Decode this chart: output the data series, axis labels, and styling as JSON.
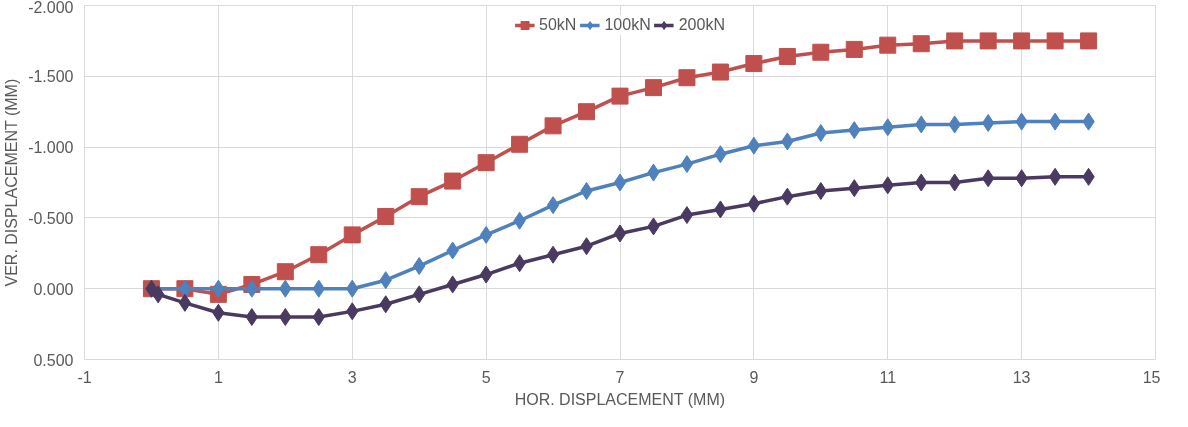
{
  "chart_data": {
    "type": "line",
    "xlabel": "HOR. DISPLACEMENT (MM)",
    "ylabel": "VER. DISPLACEMENT (MM)",
    "x": [
      0,
      0.5,
      1,
      1.5,
      2,
      2.5,
      3,
      3.5,
      4,
      4.5,
      5,
      5.5,
      6,
      6.5,
      7,
      7.5,
      8,
      8.5,
      9,
      9.5,
      10,
      10.5,
      11,
      11.5,
      12,
      12.5,
      13,
      13.5,
      14
    ],
    "series": [
      {
        "name": "50kN",
        "color": "#c0504d",
        "marker": "square",
        "values": [
          0.0,
          0.0,
          0.04,
          -0.03,
          -0.12,
          -0.24,
          -0.38,
          -0.51,
          -0.65,
          -0.76,
          -0.89,
          -1.02,
          -1.15,
          -1.25,
          -1.36,
          -1.42,
          -1.49,
          -1.53,
          -1.59,
          -1.64,
          -1.67,
          -1.69,
          -1.72,
          -1.73,
          -1.75,
          -1.75,
          -1.75,
          -1.75,
          -1.75
        ]
      },
      {
        "name": "100kN",
        "color": "#4f81bd",
        "marker": "diamond",
        "values": [
          0.0,
          0.0,
          0.0,
          0.0,
          0.0,
          0.0,
          0.0,
          -0.06,
          -0.16,
          -0.27,
          -0.38,
          -0.48,
          -0.59,
          -0.69,
          -0.75,
          -0.82,
          -0.88,
          -0.95,
          -1.01,
          -1.04,
          -1.1,
          -1.12,
          -1.14,
          -1.16,
          -1.16,
          -1.17,
          -1.18,
          -1.18,
          -1.18
        ]
      },
      {
        "name": "200kN",
        "color": "#4a3960",
        "marker": "diamond",
        "x": [
          0,
          0.1,
          0.5,
          1,
          1.5,
          2,
          2.5,
          3,
          3.5,
          4,
          4.5,
          5,
          5.5,
          6,
          6.5,
          7,
          7.5,
          8,
          8.5,
          9,
          9.5,
          10,
          10.5,
          11,
          11.5,
          12,
          12.5,
          13,
          13.5,
          14
        ],
        "values": [
          0.0,
          0.04,
          0.1,
          0.17,
          0.2,
          0.2,
          0.2,
          0.16,
          0.11,
          0.04,
          -0.03,
          -0.1,
          -0.18,
          -0.24,
          -0.3,
          -0.39,
          -0.44,
          -0.52,
          -0.56,
          -0.6,
          -0.65,
          -0.69,
          -0.71,
          -0.73,
          -0.75,
          -0.75,
          -0.78,
          -0.78,
          -0.79,
          -0.79
        ]
      }
    ],
    "xlim": [
      -1,
      15
    ],
    "xticks": [
      -1,
      1,
      3,
      5,
      7,
      9,
      11,
      13,
      15
    ],
    "ylim": [
      0.5,
      -2.0
    ],
    "yticks": [
      {
        "value": -2.0,
        "label": "-2.000"
      },
      {
        "value": -1.5,
        "label": "-1.500"
      },
      {
        "value": -1.0,
        "label": "-1.000"
      },
      {
        "value": -0.5,
        "label": "-0.500"
      },
      {
        "value": 0.0,
        "label": "0.000"
      },
      {
        "value": 0.5,
        "label": "0.500"
      }
    ],
    "grid": true,
    "legend": "top",
    "line_style": "solid"
  }
}
